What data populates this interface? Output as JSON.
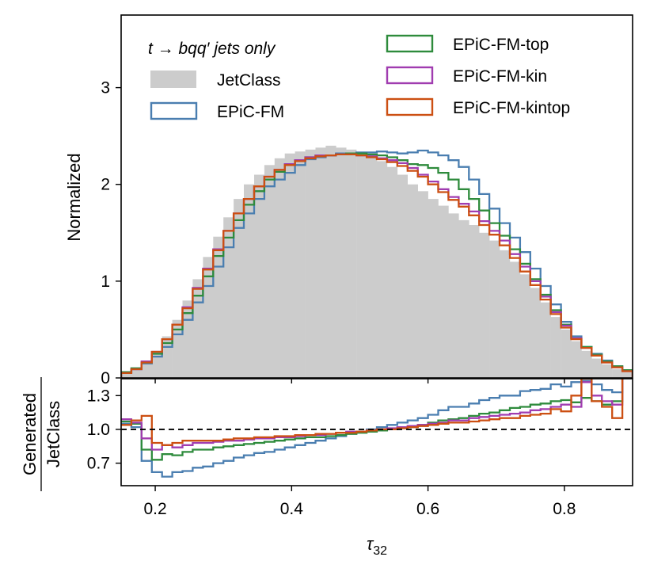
{
  "chart_data": [
    {
      "panel": "main",
      "type": "histogram",
      "xlabel": "τ32",
      "ylabel": "Normalized",
      "xlim": [
        0.15,
        0.9
      ],
      "ylim": [
        0,
        3.75
      ],
      "xticks": [],
      "yticks": [
        "0",
        "1",
        "2",
        "3"
      ],
      "ytick_values": [
        0,
        1,
        2,
        3
      ],
      "grid": false,
      "legend": {
        "placement": "top",
        "title": "t → bqq′ jets only",
        "entries": [
          "JetClass",
          "EPiC-FM",
          "EPiC-FM-top",
          "EPiC-FM-kin",
          "EPiC-FM-kintop"
        ]
      },
      "bin_edges": [
        0.15,
        0.165,
        0.18,
        0.195,
        0.21,
        0.225,
        0.24,
        0.255,
        0.27,
        0.285,
        0.3,
        0.315,
        0.33,
        0.345,
        0.36,
        0.375,
        0.39,
        0.405,
        0.42,
        0.435,
        0.45,
        0.465,
        0.48,
        0.495,
        0.51,
        0.525,
        0.54,
        0.555,
        0.57,
        0.585,
        0.6,
        0.615,
        0.63,
        0.645,
        0.66,
        0.675,
        0.69,
        0.705,
        0.72,
        0.735,
        0.75,
        0.765,
        0.78,
        0.795,
        0.81,
        0.825,
        0.84,
        0.855,
        0.87,
        0.885,
        0.9
      ],
      "series": [
        {
          "name": "JetClass",
          "style": "filled",
          "color": "#cccccc",
          "values": [
            0.05,
            0.09,
            0.17,
            0.28,
            0.43,
            0.6,
            0.8,
            1.02,
            1.25,
            1.46,
            1.66,
            1.85,
            2.0,
            2.1,
            2.2,
            2.27,
            2.32,
            2.34,
            2.36,
            2.38,
            2.4,
            2.38,
            2.36,
            2.33,
            2.3,
            2.24,
            2.18,
            2.1,
            2.0,
            1.93,
            1.85,
            1.78,
            1.7,
            1.63,
            1.58,
            1.5,
            1.42,
            1.32,
            1.2,
            1.07,
            0.93,
            0.78,
            0.63,
            0.5,
            0.38,
            0.28,
            0.2,
            0.14,
            0.09,
            0.06
          ]
        },
        {
          "name": "EPiC-FM",
          "style": "step",
          "color": "#4a7eb0",
          "values": [
            0.06,
            0.09,
            0.15,
            0.22,
            0.32,
            0.45,
            0.6,
            0.78,
            0.95,
            1.15,
            1.35,
            1.55,
            1.7,
            1.85,
            1.98,
            2.05,
            2.12,
            2.2,
            2.26,
            2.28,
            2.3,
            2.32,
            2.32,
            2.33,
            2.33,
            2.34,
            2.33,
            2.32,
            2.33,
            2.35,
            2.33,
            2.3,
            2.25,
            2.18,
            2.05,
            1.9,
            1.75,
            1.6,
            1.45,
            1.3,
            1.13,
            0.95,
            0.76,
            0.58,
            0.43,
            0.32,
            0.25,
            0.18,
            0.12,
            0.08
          ]
        },
        {
          "name": "EPiC-FM-top",
          "style": "step",
          "color": "#2e8b3c",
          "values": [
            0.06,
            0.1,
            0.16,
            0.25,
            0.36,
            0.5,
            0.67,
            0.85,
            1.05,
            1.26,
            1.45,
            1.63,
            1.79,
            1.93,
            2.05,
            2.13,
            2.2,
            2.25,
            2.28,
            2.3,
            2.3,
            2.31,
            2.32,
            2.32,
            2.31,
            2.3,
            2.28,
            2.25,
            2.21,
            2.2,
            2.17,
            2.12,
            2.05,
            1.95,
            1.85,
            1.73,
            1.6,
            1.47,
            1.33,
            1.18,
            1.02,
            0.86,
            0.7,
            0.55,
            0.41,
            0.32,
            0.24,
            0.17,
            0.12,
            0.08
          ]
        },
        {
          "name": "EPiC-FM-kin",
          "style": "step",
          "color": "#a03cb0",
          "values": [
            0.05,
            0.09,
            0.17,
            0.27,
            0.4,
            0.55,
            0.73,
            0.93,
            1.13,
            1.33,
            1.52,
            1.7,
            1.85,
            1.98,
            2.08,
            2.15,
            2.21,
            2.25,
            2.28,
            2.3,
            2.3,
            2.31,
            2.31,
            2.3,
            2.29,
            2.27,
            2.25,
            2.22,
            2.17,
            2.1,
            2.03,
            1.95,
            1.87,
            1.8,
            1.72,
            1.62,
            1.52,
            1.42,
            1.28,
            1.15,
            1.0,
            0.84,
            0.68,
            0.54,
            0.41,
            0.31,
            0.23,
            0.16,
            0.11,
            0.07
          ]
        },
        {
          "name": "EPiC-FM-kintop",
          "style": "step",
          "color": "#cc4f12",
          "values": [
            0.05,
            0.09,
            0.16,
            0.27,
            0.4,
            0.55,
            0.72,
            0.92,
            1.12,
            1.32,
            1.52,
            1.7,
            1.85,
            1.98,
            2.08,
            2.15,
            2.2,
            2.24,
            2.27,
            2.29,
            2.3,
            2.31,
            2.31,
            2.3,
            2.28,
            2.26,
            2.23,
            2.19,
            2.14,
            2.08,
            2.0,
            1.92,
            1.84,
            1.77,
            1.68,
            1.58,
            1.48,
            1.37,
            1.24,
            1.1,
            0.96,
            0.81,
            0.66,
            0.52,
            0.4,
            0.31,
            0.23,
            0.16,
            0.11,
            0.07
          ]
        }
      ]
    },
    {
      "panel": "ratio",
      "type": "histogram",
      "xlabel": "τ32",
      "ylabel_top": "Generated",
      "ylabel_bottom": "JetClass",
      "xlim": [
        0.15,
        0.9
      ],
      "ylim": [
        0.5,
        1.45
      ],
      "xticks": [
        "0.2",
        "0.4",
        "0.6",
        "0.8"
      ],
      "xtick_values": [
        0.2,
        0.4,
        0.6,
        0.8
      ],
      "yticks": [
        "0.7",
        "1.0",
        "1.3"
      ],
      "ytick_values": [
        0.7,
        1.0,
        1.3
      ],
      "reference_line": {
        "y": 1.0,
        "style": "dashed",
        "color": "#000000"
      },
      "bin_edges": [
        0.15,
        0.165,
        0.18,
        0.195,
        0.21,
        0.225,
        0.24,
        0.255,
        0.27,
        0.285,
        0.3,
        0.315,
        0.33,
        0.345,
        0.36,
        0.375,
        0.39,
        0.405,
        0.42,
        0.435,
        0.45,
        0.465,
        0.48,
        0.495,
        0.51,
        0.525,
        0.54,
        0.555,
        0.57,
        0.585,
        0.6,
        0.615,
        0.63,
        0.645,
        0.66,
        0.675,
        0.69,
        0.705,
        0.72,
        0.735,
        0.75,
        0.765,
        0.78,
        0.795,
        0.81,
        0.825,
        0.84,
        0.855,
        0.87,
        0.885,
        0.9
      ],
      "series": [
        {
          "name": "EPiC-FM",
          "color": "#4a7eb0",
          "values": [
            1.05,
            1.02,
            0.72,
            0.62,
            0.58,
            0.62,
            0.63,
            0.66,
            0.67,
            0.7,
            0.72,
            0.75,
            0.77,
            0.79,
            0.8,
            0.82,
            0.84,
            0.86,
            0.88,
            0.9,
            0.92,
            0.94,
            0.96,
            0.98,
            1.0,
            1.02,
            1.04,
            1.06,
            1.08,
            1.1,
            1.13,
            1.17,
            1.2,
            1.2,
            1.23,
            1.26,
            1.28,
            1.3,
            1.3,
            1.34,
            1.35,
            1.36,
            1.4,
            1.38,
            1.42,
            1.43,
            1.4,
            1.35,
            1.33,
            1.5
          ]
        },
        {
          "name": "EPiC-FM-top",
          "color": "#2e8b3c",
          "values": [
            1.07,
            1.05,
            0.82,
            0.73,
            0.78,
            0.77,
            0.8,
            0.82,
            0.82,
            0.84,
            0.85,
            0.86,
            0.87,
            0.88,
            0.89,
            0.9,
            0.91,
            0.92,
            0.93,
            0.93,
            0.94,
            0.95,
            0.96,
            0.97,
            0.98,
            0.99,
            1.0,
            1.01,
            1.02,
            1.04,
            1.06,
            1.08,
            1.09,
            1.1,
            1.12,
            1.14,
            1.15,
            1.17,
            1.19,
            1.2,
            1.22,
            1.23,
            1.25,
            1.26,
            1.24,
            1.28,
            1.25,
            1.22,
            1.25,
            1.5
          ]
        },
        {
          "name": "EPiC-FM-kin",
          "color": "#a03cb0",
          "values": [
            1.09,
            1.06,
            0.92,
            0.82,
            0.86,
            0.84,
            0.86,
            0.88,
            0.88,
            0.89,
            0.9,
            0.9,
            0.91,
            0.92,
            0.92,
            0.93,
            0.93,
            0.94,
            0.95,
            0.95,
            0.96,
            0.97,
            0.98,
            0.98,
            0.99,
            1.0,
            1.01,
            1.02,
            1.03,
            1.04,
            1.05,
            1.06,
            1.08,
            1.08,
            1.1,
            1.11,
            1.12,
            1.13,
            1.14,
            1.15,
            1.17,
            1.18,
            1.2,
            1.22,
            1.2,
            1.42,
            1.3,
            1.25,
            1.22,
            1.5
          ]
        },
        {
          "name": "EPiC-FM-kintop",
          "color": "#cc4f12",
          "values": [
            1.04,
            1.08,
            1.12,
            0.88,
            0.86,
            0.88,
            0.9,
            0.9,
            0.9,
            0.9,
            0.91,
            0.92,
            0.92,
            0.93,
            0.93,
            0.94,
            0.94,
            0.95,
            0.95,
            0.96,
            0.96,
            0.97,
            0.97,
            0.98,
            0.99,
            1.0,
            1.0,
            1.01,
            1.02,
            1.03,
            1.04,
            1.05,
            1.06,
            1.06,
            1.07,
            1.08,
            1.09,
            1.1,
            1.1,
            1.12,
            1.13,
            1.14,
            1.18,
            1.16,
            1.3,
            1.45,
            1.25,
            1.2,
            1.1,
            1.5
          ]
        }
      ]
    }
  ]
}
